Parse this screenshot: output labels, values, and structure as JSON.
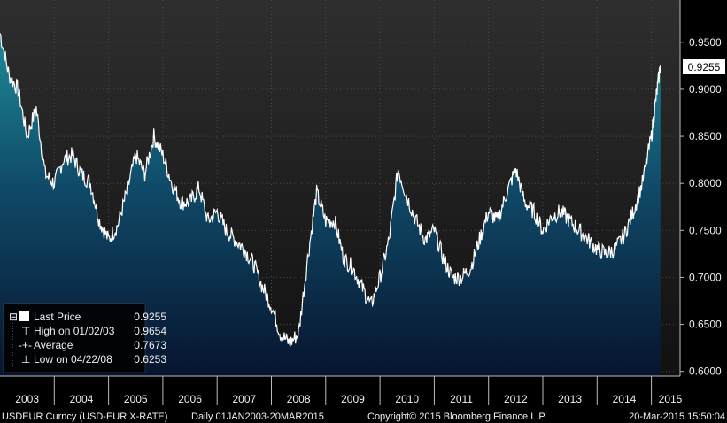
{
  "chart_data": {
    "type": "area",
    "title": "",
    "xlabel": "",
    "ylabel": "",
    "ylim": [
      0.595,
      0.995
    ],
    "y_ticks": [
      "0.9500",
      "0.9000",
      "0.8500",
      "0.8000",
      "0.7500",
      "0.7000",
      "0.6500",
      "0.6000"
    ],
    "x_ticks": [
      "2003",
      "2004",
      "2005",
      "2006",
      "2007",
      "2008",
      "2009",
      "2010",
      "2011",
      "2012",
      "2013",
      "2014",
      "2015"
    ],
    "last_price_label": "0.9255",
    "series": [
      {
        "x": [
          "2003-01",
          "2003-03",
          "2003-05",
          "2003-07",
          "2003-09",
          "2003-11",
          "2004-01",
          "2004-03",
          "2004-05",
          "2004-07",
          "2004-09",
          "2004-11",
          "2005-01",
          "2005-03",
          "2005-05",
          "2005-07",
          "2005-09",
          "2005-11",
          "2006-01",
          "2006-03",
          "2006-05",
          "2006-07",
          "2006-09",
          "2006-11",
          "2007-01",
          "2007-03",
          "2007-05",
          "2007-07",
          "2007-09",
          "2007-11",
          "2008-01",
          "2008-03",
          "2008-05",
          "2008-07",
          "2008-09",
          "2008-11",
          "2009-01",
          "2009-03",
          "2009-05",
          "2009-07",
          "2009-09",
          "2009-11",
          "2010-01",
          "2010-03",
          "2010-05",
          "2010-07",
          "2010-09",
          "2010-11",
          "2011-01",
          "2011-03",
          "2011-05",
          "2011-07",
          "2011-09",
          "2011-11",
          "2012-01",
          "2012-03",
          "2012-05",
          "2012-07",
          "2012-09",
          "2012-11",
          "2013-01",
          "2013-03",
          "2013-05",
          "2013-07",
          "2013-09",
          "2013-11",
          "2014-01",
          "2014-03",
          "2014-05",
          "2014-07",
          "2014-09",
          "2014-11",
          "2015-01",
          "2015-02",
          "2015-03"
        ],
        "values": [
          0.96,
          0.915,
          0.9,
          0.85,
          0.88,
          0.81,
          0.8,
          0.825,
          0.83,
          0.81,
          0.8,
          0.76,
          0.74,
          0.755,
          0.79,
          0.83,
          0.81,
          0.85,
          0.83,
          0.8,
          0.78,
          0.78,
          0.795,
          0.76,
          0.77,
          0.75,
          0.74,
          0.73,
          0.715,
          0.69,
          0.67,
          0.64,
          0.63,
          0.64,
          0.72,
          0.79,
          0.76,
          0.76,
          0.72,
          0.71,
          0.69,
          0.67,
          0.7,
          0.74,
          0.815,
          0.785,
          0.76,
          0.74,
          0.75,
          0.72,
          0.7,
          0.7,
          0.71,
          0.74,
          0.77,
          0.76,
          0.79,
          0.815,
          0.78,
          0.77,
          0.75,
          0.765,
          0.77,
          0.76,
          0.75,
          0.74,
          0.73,
          0.725,
          0.73,
          0.745,
          0.77,
          0.8,
          0.85,
          0.89,
          0.9255
        ]
      }
    ],
    "legend": [
      {
        "label": "Last Price",
        "value": "0.9255"
      },
      {
        "label": "High on 01/02/03",
        "value": "0.9654"
      },
      {
        "label": "Average",
        "value": "0.7673"
      },
      {
        "label": "Low on 04/22/08",
        "value": "0.6253"
      }
    ],
    "legend_position": "bottom-left",
    "grid": true
  },
  "footer": {
    "left": "USDEUR Curncy (USD-EUR X-RATE)",
    "mid": "Daily 01JAN2003-20MAR2015",
    "copyright": "Copyright© 2015 Bloomberg Finance L.P.",
    "timestamp": "20-Mar-2015 15:50:04"
  },
  "colors": {
    "background": "#000000",
    "plot_top": "#2a2a2a",
    "line": "#ffffff",
    "area_top": "#1a7a88",
    "area_bottom": "#0b1a3a",
    "grid": "#4a4a4a"
  }
}
